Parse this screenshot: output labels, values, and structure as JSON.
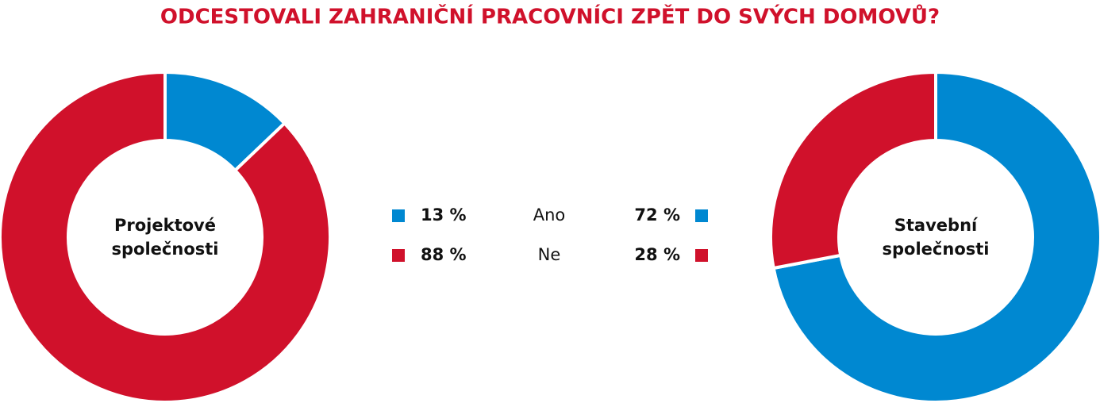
{
  "title": "ODCESTOVALI ZAHRANIČNÍ PRACOVNÍCI ZPĚT DO SVÝCH DOMOVŮ?",
  "chart_data": [
    {
      "type": "donut",
      "label": "Projektové společnosti",
      "categories": [
        "Ano",
        "Ne"
      ],
      "values": [
        13,
        88
      ],
      "value_labels": [
        "13 %",
        "88 %"
      ],
      "colors": [
        "#0088d1",
        "#d0112b"
      ]
    },
    {
      "type": "donut",
      "label": "Stavební společnosti",
      "categories": [
        "Ano",
        "Ne"
      ],
      "values": [
        72,
        28
      ],
      "value_labels": [
        "72 %",
        "28 %"
      ],
      "colors": [
        "#0088d1",
        "#d0112b"
      ]
    }
  ]
}
